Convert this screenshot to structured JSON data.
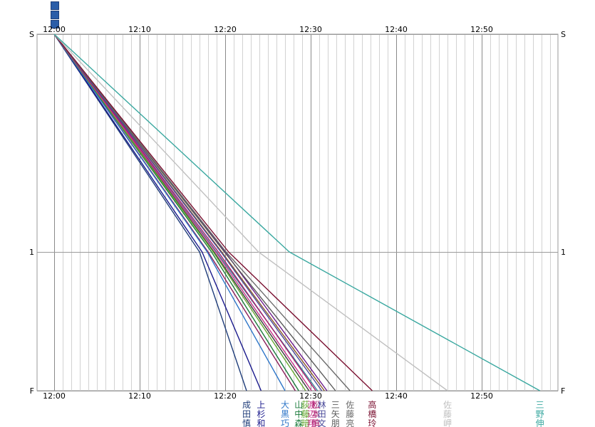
{
  "chart_data": {
    "type": "line",
    "title": "",
    "x_time_axis": {
      "start_minutes": 0,
      "end_minutes": 59,
      "tick_labels": [
        "12:00",
        "12:10",
        "12:20",
        "12:30",
        "12:40",
        "12:50"
      ],
      "minor_grid_every_minutes": 1
    },
    "y_axis": {
      "labels": [
        "S",
        "1",
        "F"
      ],
      "split_at": 1
    },
    "grid": true,
    "series": [
      {
        "name": "成田慎",
        "label": [
          "成",
          "田",
          "慎"
        ],
        "color": "#1f3d7a",
        "split": 17.0,
        "finish": 22.5
      },
      {
        "name": "上杉和",
        "label": [
          "上",
          "杉",
          "和"
        ],
        "color": "#1a1a8c",
        "split": 17.3,
        "finish": 24.2
      },
      {
        "name": "大黒巧",
        "label": [
          "大",
          "黒",
          "巧"
        ],
        "color": "#2e76c8",
        "split": 17.9,
        "finish": 27.0
      },
      {
        "name": "山中森",
        "label": [
          "山",
          "中",
          "森"
        ],
        "color": "#1a7a3a",
        "split": 18.4,
        "finish": 28.6
      },
      {
        "name": "荻藤暗",
        "label": [
          "荻",
          "藤",
          "暗"
        ],
        "color": "#66a832",
        "split": 18.6,
        "finish": 29.4
      },
      {
        "name": "渡辺翔",
        "label": [
          "渡",
          "辺",
          "翔"
        ],
        "color": "#c8338c",
        "split": 18.9,
        "finish": 30.1
      },
      {
        "name": "松本慎",
        "label": [
          "松",
          "本",
          "慎"
        ],
        "color": "#a81a6a",
        "split": 19.2,
        "finish": 30.6
      },
      {
        "name": "林田文",
        "label": [
          "林",
          "田",
          "文"
        ],
        "color": "#4a4a9a",
        "split": 19.5,
        "finish": 31.3
      },
      {
        "name": "三矢朋",
        "label": [
          "三",
          "矢",
          "朋"
        ],
        "color": "#5a5a5a",
        "split": 19.9,
        "finish": 32.9
      },
      {
        "name": "佐藤亮",
        "label": [
          "佐",
          "藤",
          "亮"
        ],
        "color": "#6b6b6b",
        "split": 20.1,
        "finish": 34.6
      },
      {
        "name": "高橋玲",
        "label": [
          "高",
          "橋",
          "玲"
        ],
        "color": "#7a1030",
        "split": 20.4,
        "finish": 37.2
      },
      {
        "name": "佐藤岬",
        "label": [
          "佐",
          "藤",
          "岬"
        ],
        "color": "#c0c0c0",
        "split": 23.9,
        "finish": 46.0
      },
      {
        "name": "三野伸",
        "label": [
          "三",
          "野",
          "伸"
        ],
        "color": "#3aa8a0",
        "split": 27.5,
        "finish": 56.8
      }
    ],
    "extra_lines": [
      {
        "color": "#8a1e5a",
        "split": 18.0,
        "finish": 28.2
      },
      {
        "color": "#3a3a3a",
        "split": 18.7,
        "finish": 29.8
      },
      {
        "color": "#3a8a9a",
        "split": 19.0,
        "finish": 30.8
      },
      {
        "color": "#8a5a2a",
        "split": 19.6,
        "finish": 31.6
      },
      {
        "color": "#6a1a8a",
        "split": 20.0,
        "finish": 31.9
      }
    ]
  }
}
